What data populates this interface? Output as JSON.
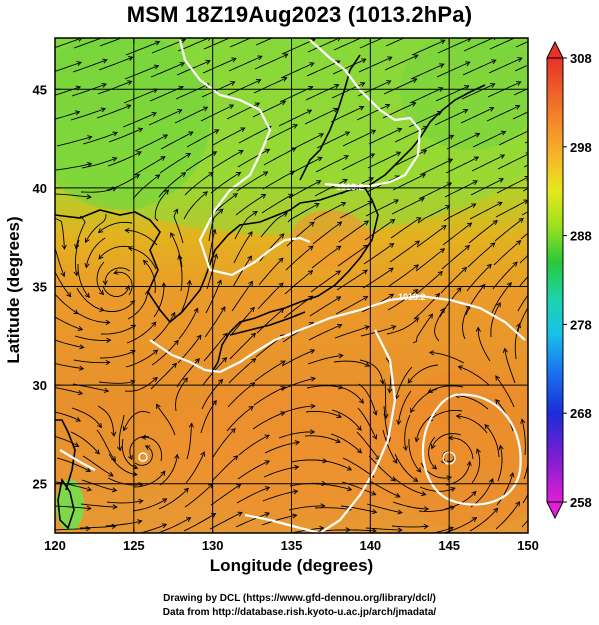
{
  "title": "MSM 18Z19Aug2023 (1013.2hPa)",
  "x_axis": {
    "label": "Longitude (degrees)",
    "ticks": [
      "120",
      "125",
      "130",
      "135",
      "140",
      "145",
      "150"
    ]
  },
  "y_axis": {
    "label": "Latitude  (degrees)",
    "ticks": [
      "25",
      "30",
      "35",
      "40",
      "45"
    ]
  },
  "colorbar": {
    "ticks": [
      "308",
      "298",
      "288",
      "278",
      "268",
      "258"
    ],
    "range": [
      258,
      308
    ]
  },
  "contour_labels": [
    "1013.2",
    "1013.2"
  ],
  "credits": {
    "line1": "Drawing by DCL (https://www.gfd-dennou.org/library/dcl/)",
    "line2": "Data from http://database.rish.kyoto-u.ac.jp/arch/jmadata/"
  },
  "map_extent": {
    "lon": [
      120,
      150
    ],
    "lat": [
      22.5,
      47.6
    ]
  }
}
